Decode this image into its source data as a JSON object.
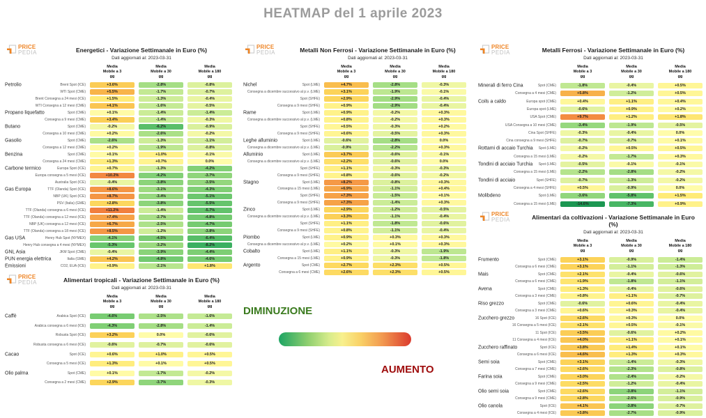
{
  "page_title": "HEATMAP del 1 aprile 2023",
  "logo": {
    "brand_top": "PRICE",
    "brand_bottom": "PEDIA",
    "accent_color": "#ee8526",
    "gray_color": "#bfbfbf"
  },
  "legend": {
    "decrease_label": "DIMINUZIONE",
    "increase_label": "AUMENTO",
    "decrease_color": "#3a7a1e",
    "increase_color": "#9e0b0b",
    "gradient_stops": [
      "#1da463",
      "#8fcf6f",
      "#d7ec8c",
      "#f8f08d",
      "#f9d066",
      "#f29a50",
      "#db3b2e"
    ]
  },
  "chart_data": [
    {
      "type": "heatmap",
      "title": "Energetici - Variazione Settimanale in Euro (%)",
      "subtitle": "Dati aggiornati al: 2023-03-31",
      "unit": "%",
      "columns": [
        [
          "Media",
          "Mobile a 3",
          "gg"
        ],
        [
          "Media",
          "Mobile a 30",
          "gg"
        ],
        [
          "Media",
          "Mobile a 180",
          "gg"
        ]
      ],
      "rows": [
        [
          "Petrolio",
          "Brent Spot (ICE)",
          3.6,
          -2.8,
          -0.8
        ],
        [
          "",
          "WTI Spot (CME)",
          5.5,
          -1.7,
          -0.7
        ],
        [
          "",
          "Brent Consegna a 24 mesi (ICE)",
          1.5,
          -1.3,
          -0.4
        ],
        [
          "",
          "WTI Consegna a 12 mesi (CME)",
          4.1,
          -1.6,
          -0.5
        ],
        [
          "Propano liquefatto",
          "Spot (CME)",
          0.1,
          -1.4,
          -1.4
        ],
        [
          "",
          "Consegna a 9 mesi (CME)",
          3.4,
          -1.4,
          -0.3
        ],
        [
          "Butano",
          "Spot (CME)",
          -0.2,
          -6.2,
          -0.9
        ],
        [
          "",
          "Consegna a 10 mesi (CME)",
          0.2,
          -2.6,
          -0.2
        ],
        [
          "Gasolio",
          "Spot (CME)",
          -2.6,
          -1.3,
          -1.1
        ],
        [
          "",
          "Consegna a 12 mesi (CME)",
          0.2,
          -1.9,
          -0.8
        ],
        [
          "Benzina",
          "Spot (CME)",
          0.1,
          1.0,
          -0.1
        ],
        [
          "",
          "Consegna a 24 mesi (CME)",
          1.3,
          0.7,
          0.0
        ],
        [
          "Carbone termico",
          "Europa Spot (ICE)",
          0.7,
          -1.3,
          -4.2
        ],
        [
          "",
          "Europa consegna a 5 mesi (ICE)",
          10.2,
          -4.2,
          -3.7
        ],
        [
          "",
          "Australia Spot (ICE)",
          -0.4,
          -3.8,
          -3.5
        ],
        [
          "Gas Europa",
          "TTF (Olanda) Spot (ICE)",
          8.6,
          -3.1,
          -4.3
        ],
        [
          "",
          "NBP (UK) Spot (ICE)",
          8.7,
          -3.4,
          -5.1
        ],
        [
          "",
          "PSV (Italia) (GME)",
          2.8,
          -3.8,
          -5.5
        ],
        [
          "",
          "TTF (Olanda) consegna a 6 mesi (ICE)",
          11.2,
          -1.4,
          -5.7
        ],
        [
          "",
          "TTF (Olanda) consegna a 12 mesi (ICE)",
          7.4,
          -2.7,
          -4.8
        ],
        [
          "",
          "NBP (UK) consegna a 12 mesi (ICE)",
          6.7,
          -2.5,
          -4.7
        ],
        [
          "",
          "TTF (Olanda) consegna a 18 mesi (ICE)",
          8.5,
          -1.2,
          -3.8
        ],
        [
          "Gas USA",
          "Henry Hub Spot (NYMEX)",
          -4.1,
          -4.5,
          -6.4
        ],
        [
          "",
          "Henry Hub consegna a 4 mesi (NYMEX)",
          -5.3,
          -3.2,
          -8.2
        ],
        [
          "GNL Asia",
          "JKM Spot (CME)",
          -0.4,
          -3.9,
          -4.4
        ],
        [
          "PUN energia elettrica",
          "Italia (GME)",
          4.2,
          -4.8,
          -4.6
        ],
        [
          "Emissioni",
          "CO2, EUA (ICE)",
          0.9,
          -2.1,
          1.8
        ]
      ]
    },
    {
      "type": "heatmap",
      "title": "Metalli Non Ferrosi - Variazione Settimanale in Euro (%)",
      "subtitle": "Dati aggiornati al: 2023-03-31",
      "unit": "%",
      "columns": [
        [
          "Media",
          "Mobile a 3",
          "gg"
        ],
        [
          "Media",
          "Mobile a 30",
          "gg"
        ],
        [
          "Media",
          "Mobile a 180",
          "gg"
        ]
      ],
      "rows": [
        [
          "Nichel",
          "Spot (LME)",
          4.7,
          -2.8,
          -0.3
        ],
        [
          "",
          "Consegna a dicembre successivo al p.v. (LME)",
          3.1,
          -1.9,
          -0.1
        ],
        [
          "",
          "Spot (SHFE)",
          2.9,
          -2.9,
          -0.4
        ],
        [
          "",
          "Consegna a 9 mesi (SHFE)",
          0.9,
          -2.9,
          -0.4
        ],
        [
          "Rame",
          "Spot (LME)",
          0.9,
          -0.2,
          0.3
        ],
        [
          "",
          "Consegna a dicembre successivo al p.v. (LME)",
          0.8,
          -0.2,
          0.3
        ],
        [
          "",
          "Spot (SHFE)",
          0.5,
          -0.3,
          0.2
        ],
        [
          "",
          "Consegna a 9 mesi (SHFE)",
          0.6,
          -0.5,
          0.3
        ],
        [
          "Leghe alluminio",
          "Spot (LME)",
          -0.6,
          -2.8,
          0.0
        ],
        [
          "",
          "Consegna a dicembre successivo al p.v. (LME)",
          -0.9,
          -2.2,
          0.3
        ],
        [
          "Alluminio",
          "Spot (LME)",
          3.7,
          -0.6,
          -0.1
        ],
        [
          "",
          "Consegna a dicembre successivo al p.v. (LME)",
          2.2,
          -0.6,
          0.0
        ],
        [
          "",
          "Spot (SHFE)",
          1.1,
          -0.3,
          -0.3
        ],
        [
          "",
          "Consegna a 9 mesi (SHFE)",
          0.8,
          -0.6,
          -0.2
        ],
        [
          "Stagno",
          "Spot (LME)",
          8.2,
          -0.8,
          0.3
        ],
        [
          "",
          "Consegna a 15 mesi (LME)",
          6.9,
          -1.1,
          0.4
        ],
        [
          "",
          "Spot (SHFE)",
          7.3,
          -1.5,
          0.1
        ],
        [
          "",
          "Consegna a 9 mesi (SHFE)",
          7.3,
          -1.4,
          0.3
        ],
        [
          "Zinco",
          "Spot (LME)",
          2.9,
          -1.2,
          -0.5
        ],
        [
          "",
          "Consegna a dicembre successivo al p.v. (LME)",
          3.3,
          -1.1,
          -0.4
        ],
        [
          "",
          "Spot (SHFE)",
          1.1,
          -1.8,
          -0.6
        ],
        [
          "",
          "Consegna a 9 mesi (SHFE)",
          0.8,
          -1.1,
          -0.4
        ],
        [
          "Piombo",
          "Spot (LME)",
          0.9,
          0.3,
          0.3
        ],
        [
          "",
          "Consegna a dicembre successivo al p.v. (LME)",
          0.2,
          0.1,
          0.3
        ],
        [
          "Cobalto",
          "Spot (LME)",
          1.1,
          -0.3,
          -1.9
        ],
        [
          "",
          "Consegna a 15 mesi (LME)",
          0.9,
          -0.3,
          -1.8
        ],
        [
          "Argento",
          "Spot (CME)",
          2.7,
          2.3,
          0.5
        ],
        [
          "",
          "Consegna a 6 mesi (CME)",
          2.6,
          2.3,
          0.5
        ]
      ]
    },
    {
      "type": "heatmap",
      "title": "Metalli Ferrosi - Variazione Settimanale in Euro (%)",
      "subtitle": "Dati aggiornati al: 2023-03-31",
      "unit": "%",
      "columns": [
        [
          "Media",
          "Mobile a 3",
          "gg"
        ],
        [
          "Media",
          "Mobile a 30",
          "gg"
        ],
        [
          "Media",
          "Mobile a 180",
          "gg"
        ]
      ],
      "rows": [
        [
          "Minerali di ferro Cina",
          "Spot (CME)",
          -1.8,
          -0.4,
          0.5
        ],
        [
          "",
          "Consegna a 4 mesi (CME)",
          5.8,
          -1.2,
          0.5
        ],
        [
          "Coils a caldo",
          "Europa spot (CME)",
          0.4,
          1.1,
          0.4
        ],
        [
          "",
          "Europa spot (LME)",
          -0.6,
          0.9,
          0.2
        ],
        [
          "",
          "USA Spot (CME)",
          9.7,
          1.2,
          1.8
        ],
        [
          "",
          "USA Consegna a 10 mesi (CME)",
          -3.4,
          -1.9,
          -0.5
        ],
        [
          "",
          "Cina Spot (SHFE)",
          -0.3,
          -0.4,
          0.0
        ],
        [
          "",
          "Cina consegna a 9 mesi (SHFE)",
          -0.7,
          -0.7,
          0.1
        ],
        [
          "Rottami di accaio Turchia",
          "Spot (LME)",
          -0.2,
          0.5,
          0.5
        ],
        [
          "",
          "Consegna a 15 mesi (LME)",
          -0.2,
          -1.7,
          0.3
        ],
        [
          "Tondini di acciaio Turchia",
          "Spot (LME)",
          -0.5,
          -0.1,
          -0.1
        ],
        [
          "",
          "Consegna a 15 mesi (LME)",
          -2.2,
          -2.8,
          -0.2
        ],
        [
          "Tondini di acciaio",
          "Spot (SHFE)",
          -0.7,
          -1.3,
          -0.2
        ],
        [
          "",
          "Consegna a 4 mesi (SHFE)",
          0.5,
          -0.9,
          0.0
        ],
        [
          "Molibdeno",
          "Spot (LME)",
          -3.6,
          -5.8,
          1.5
        ],
        [
          "",
          "Consegna a 15 mesi (LME)",
          -14.6,
          -7.3,
          0.9
        ]
      ]
    },
    {
      "type": "heatmap",
      "title": "Alimentari tropicali - Variazione Settimanale in Euro (%)",
      "subtitle": "Dati aggiornati al: 2023-03-31",
      "unit": "%",
      "columns": [
        [
          "Media",
          "Mobile a 3",
          "gg"
        ],
        [
          "Media",
          "Mobile a 30",
          "gg"
        ],
        [
          "Media",
          "Mobile a 180",
          "gg"
        ]
      ],
      "rows": [
        [
          "Caffè",
          "Arabica Spot (ICE)",
          -4.6,
          -2.5,
          -1.6
        ],
        [
          "",
          "Arabica consegna a 6 mesi (ICE)",
          -4.3,
          -2.8,
          -1.4
        ],
        [
          "",
          "Robusta Spot (ICE)",
          3.2,
          0.0,
          -0.6
        ],
        [
          "",
          "Robusta consegna a 6 mesi (ICE)",
          -0.6,
          -0.7,
          -0.6
        ],
        [
          "Cacao",
          "Spot (ICE)",
          0.6,
          1.0,
          0.5
        ],
        [
          "",
          "Consegna a 5 mesi (ICE)",
          1.3,
          0.1,
          0.5
        ],
        [
          "Olio palma",
          "Spot (CME)",
          0.1,
          -1.7,
          -0.2
        ],
        [
          "",
          "Consegna a 2 mesi (CME)",
          2.9,
          -3.7,
          -0.3
        ]
      ]
    },
    {
      "type": "heatmap",
      "title": "Alimentari da coltivazioni - Variazione Settimanale in Euro (%)",
      "subtitle": "Dati aggiornati al: 2023-03-31",
      "unit": "%",
      "columns": [
        [
          "Media",
          "Mobile a 3",
          "gg"
        ],
        [
          "Media",
          "Mobile a 30",
          "gg"
        ],
        [
          "Media",
          "Mobile a 180",
          "gg"
        ]
      ],
      "rows": [
        [
          "Frumento",
          "Spot (CME)",
          3.1,
          -0.9,
          -1.4
        ],
        [
          "",
          "Consegna a 6 mesi (CME)",
          3.1,
          -1.1,
          -1.3
        ],
        [
          "Mais",
          "Spot (CME)",
          2.1,
          -0.4,
          -0.6
        ],
        [
          "",
          "Consegna a 6 mesi (CME)",
          1.9,
          -1.8,
          -1.1
        ],
        [
          "Avena",
          "Spot (CME)",
          1.3,
          -0.4,
          -0.6
        ],
        [
          "",
          "Consegna a 3 mesi (CME)",
          0.8,
          1.1,
          -0.7
        ],
        [
          "Riso grezzo",
          "Spot (CME)",
          -0.6,
          0.6,
          -0.4
        ],
        [
          "",
          "Consegna a 3 mesi (CME)",
          0.6,
          0.3,
          -0.4
        ],
        [
          "Zucchero grezzo",
          "16 Spot (ICE)",
          2.6,
          0.3,
          0.0
        ],
        [
          "",
          "16 Consegna a 5 mesi (ICE)",
          2.1,
          0.5,
          -0.1
        ],
        [
          "",
          "11 Spot (ICE)",
          3.5,
          -0.6,
          0.2
        ],
        [
          "",
          "11 Consegna a 4 mesi (ICE)",
          4.0,
          1.1,
          0.1
        ],
        [
          "Zucchero raffinato",
          "Spot (ICE)",
          3.8,
          1.4,
          0.1
        ],
        [
          "",
          "Consegna a 6 mesi (ICE)",
          4.6,
          1.3,
          0.3
        ],
        [
          "Semi soia",
          "Spot (CME)",
          3.1,
          -1.4,
          -0.3
        ],
        [
          "",
          "Consegna a 7 mesi (CME)",
          2.6,
          -2.3,
          -0.8
        ],
        [
          "Farina soia",
          "Spot (CME)",
          3.0,
          -2.4,
          -0.2
        ],
        [
          "",
          "Consegna a 9 mesi (CME)",
          2.5,
          -1.2,
          -0.4
        ],
        [
          "Olio semi soia",
          "Spot (CME)",
          2.6,
          -3.8,
          -1.1
        ],
        [
          "",
          "Consegna a 9 mesi (CME)",
          2.8,
          -2.6,
          -0.9
        ],
        [
          "Olio canola",
          "Spot (ICE)",
          4.1,
          -3.8,
          -0.7
        ],
        [
          "",
          "Consegna a 4 mesi (ICE)",
          3.8,
          -2.7,
          -0.9
        ]
      ]
    }
  ]
}
